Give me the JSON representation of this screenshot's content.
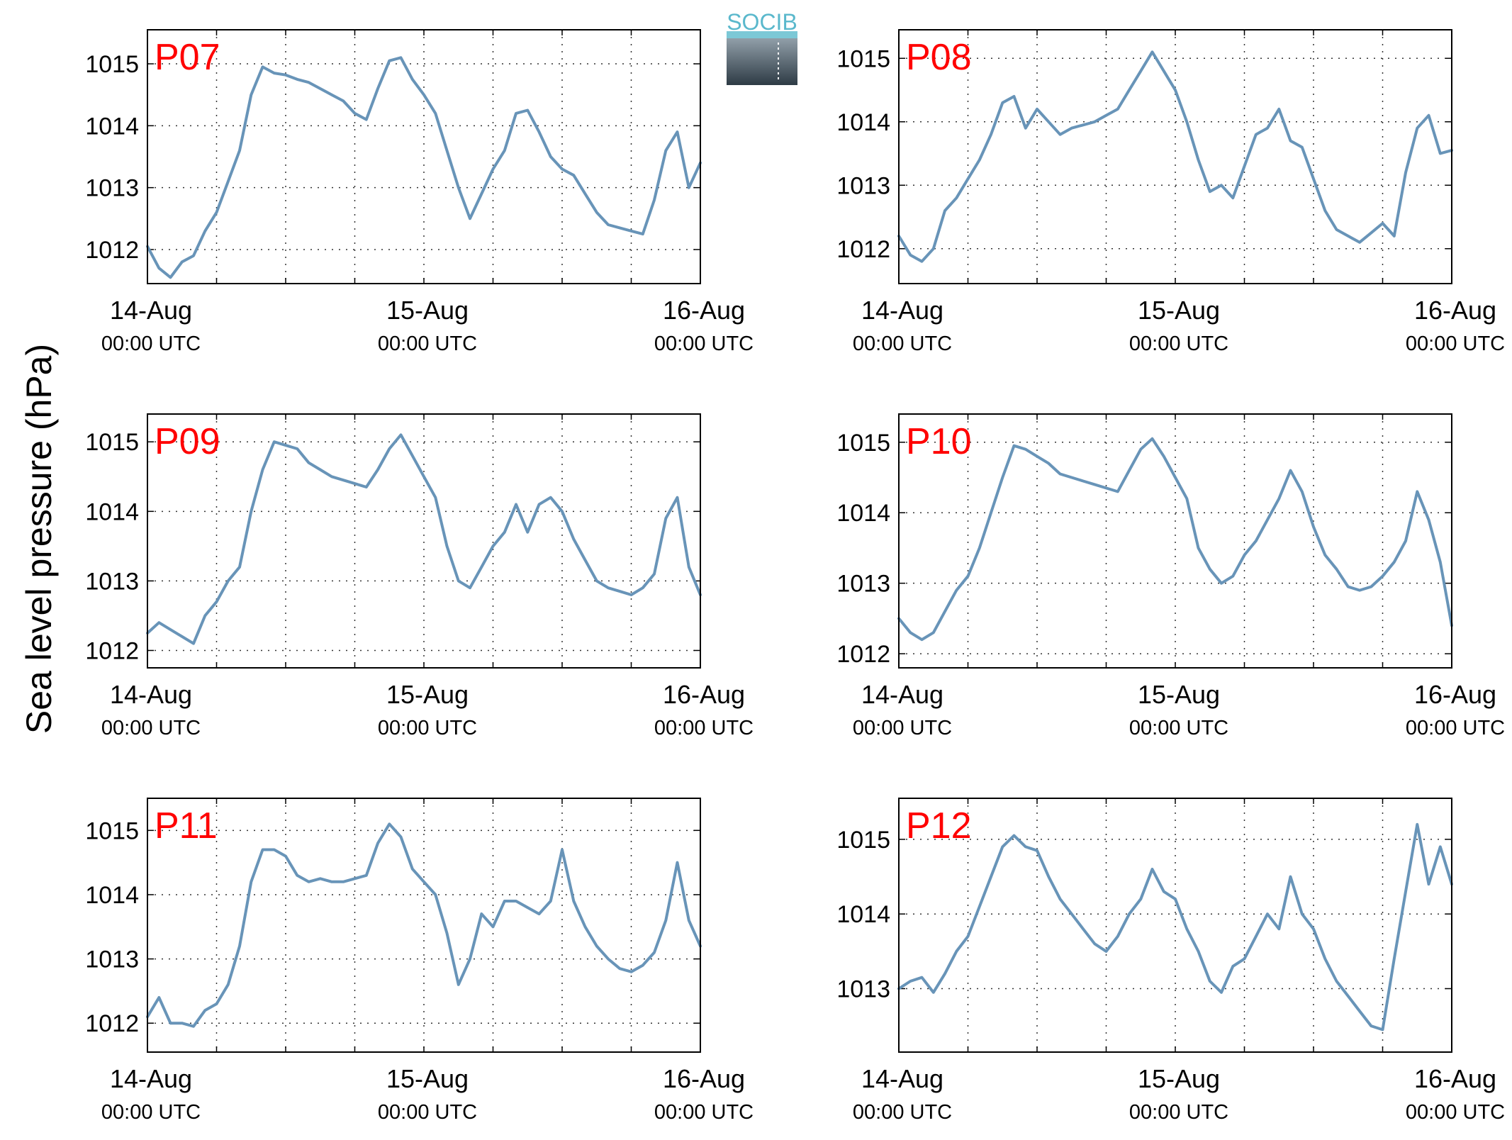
{
  "figure": {
    "ylabel": "Sea level pressure (hPa)",
    "logo_text": "SOCIB"
  },
  "colors": {
    "series": "#6894b8",
    "panel_label": "#ff0000",
    "axis": "#000000",
    "grid": "#333333",
    "logo_top": "#5ab8cc",
    "logo_bottom": "#2e3b45"
  },
  "chart_data": [
    {
      "type": "line",
      "panel_label": "P07",
      "xticks": [
        {
          "date": "14-Aug",
          "time": "00:00 UTC"
        },
        {
          "date": "15-Aug",
          "time": "00:00 UTC"
        },
        {
          "date": "16-Aug",
          "time": "00:00 UTC"
        }
      ],
      "xlim_hours": [
        0,
        48
      ],
      "ylim": [
        1011.45,
        1015.55
      ],
      "yticks": [
        1012,
        1013,
        1014,
        1015
      ],
      "grid": true,
      "series": [
        {
          "x_hours": [
            0,
            1,
            2,
            3,
            4,
            5,
            6,
            7,
            8,
            9,
            10,
            11,
            12,
            13,
            14,
            15,
            16,
            17,
            18,
            19,
            20,
            21,
            22,
            23,
            24,
            25,
            26,
            27,
            28,
            29,
            30,
            31,
            32,
            33,
            34,
            35,
            36,
            37,
            38,
            39,
            40,
            41,
            42,
            43,
            44,
            45,
            46,
            47,
            48
          ],
          "values": [
            1012.05,
            1011.7,
            1011.55,
            1011.8,
            1011.9,
            1012.3,
            1012.6,
            1013.1,
            1013.6,
            1014.5,
            1014.95,
            1014.85,
            1014.82,
            1014.75,
            1014.7,
            1014.6,
            1014.5,
            1014.4,
            1014.2,
            1014.1,
            1014.6,
            1015.05,
            1015.1,
            1014.75,
            1014.5,
            1014.2,
            1013.6,
            1013.0,
            1012.5,
            1012.9,
            1013.3,
            1013.6,
            1014.2,
            1014.25,
            1013.9,
            1013.5,
            1013.3,
            1013.2,
            1012.9,
            1012.6,
            1012.4,
            1012.35,
            1012.3,
            1012.25,
            1012.8,
            1013.6,
            1013.9,
            1013.0,
            1013.4
          ]
        }
      ]
    },
    {
      "type": "line",
      "panel_label": "P08",
      "xticks": [
        {
          "date": "14-Aug",
          "time": "00:00 UTC"
        },
        {
          "date": "15-Aug",
          "time": "00:00 UTC"
        },
        {
          "date": "16-Aug",
          "time": "00:00 UTC"
        }
      ],
      "xlim_hours": [
        0,
        48
      ],
      "ylim": [
        1011.45,
        1015.45
      ],
      "yticks": [
        1012,
        1013,
        1014,
        1015
      ],
      "grid": true,
      "series": [
        {
          "x_hours": [
            0,
            1,
            2,
            3,
            4,
            5,
            6,
            7,
            8,
            9,
            10,
            11,
            12,
            13,
            14,
            15,
            16,
            17,
            18,
            19,
            20,
            21,
            22,
            23,
            24,
            25,
            26,
            27,
            28,
            29,
            30,
            31,
            32,
            33,
            34,
            35,
            36,
            37,
            38,
            39,
            40,
            41,
            42,
            43,
            44,
            45,
            46,
            47,
            48
          ],
          "values": [
            1012.2,
            1011.9,
            1011.8,
            1012.0,
            1012.6,
            1012.8,
            1013.1,
            1013.4,
            1013.8,
            1014.3,
            1014.4,
            1013.9,
            1014.2,
            1014.0,
            1013.8,
            1013.9,
            1013.95,
            1014.0,
            1014.1,
            1014.2,
            1014.5,
            1014.8,
            1015.1,
            1014.8,
            1014.5,
            1014.0,
            1013.4,
            1012.9,
            1013.0,
            1012.8,
            1013.3,
            1013.8,
            1013.9,
            1014.2,
            1013.7,
            1013.6,
            1013.1,
            1012.6,
            1012.3,
            1012.2,
            1012.1,
            1012.25,
            1012.4,
            1012.2,
            1013.2,
            1013.9,
            1014.1,
            1013.5,
            1013.55
          ]
        }
      ]
    },
    {
      "type": "line",
      "panel_label": "P09",
      "xticks": [
        {
          "date": "14-Aug",
          "time": "00:00 UTC"
        },
        {
          "date": "15-Aug",
          "time": "00:00 UTC"
        },
        {
          "date": "16-Aug",
          "time": "00:00 UTC"
        }
      ],
      "xlim_hours": [
        0,
        48
      ],
      "ylim": [
        1011.75,
        1015.4
      ],
      "yticks": [
        1012,
        1013,
        1014,
        1015
      ],
      "grid": true,
      "series": [
        {
          "x_hours": [
            0,
            1,
            2,
            3,
            4,
            5,
            6,
            7,
            8,
            9,
            10,
            11,
            12,
            13,
            14,
            15,
            16,
            17,
            18,
            19,
            20,
            21,
            22,
            23,
            24,
            25,
            26,
            27,
            28,
            29,
            30,
            31,
            32,
            33,
            34,
            35,
            36,
            37,
            38,
            39,
            40,
            41,
            42,
            43,
            44,
            45,
            46,
            47,
            48
          ],
          "values": [
            1012.25,
            1012.4,
            1012.3,
            1012.2,
            1012.1,
            1012.5,
            1012.7,
            1013.0,
            1013.2,
            1014.0,
            1014.6,
            1015.0,
            1014.95,
            1014.9,
            1014.7,
            1014.6,
            1014.5,
            1014.45,
            1014.4,
            1014.35,
            1014.6,
            1014.9,
            1015.1,
            1014.8,
            1014.5,
            1014.2,
            1013.5,
            1013.0,
            1012.9,
            1013.2,
            1013.5,
            1013.7,
            1014.1,
            1013.7,
            1014.1,
            1014.2,
            1014.0,
            1013.6,
            1013.3,
            1013.0,
            1012.9,
            1012.85,
            1012.8,
            1012.9,
            1013.1,
            1013.9,
            1014.2,
            1013.2,
            1012.8
          ]
        }
      ]
    },
    {
      "type": "line",
      "panel_label": "P10",
      "xticks": [
        {
          "date": "14-Aug",
          "time": "00:00 UTC"
        },
        {
          "date": "15-Aug",
          "time": "00:00 UTC"
        },
        {
          "date": "16-Aug",
          "time": "00:00 UTC"
        }
      ],
      "xlim_hours": [
        0,
        48
      ],
      "ylim": [
        1011.8,
        1015.4
      ],
      "yticks": [
        1012,
        1013,
        1014,
        1015
      ],
      "grid": true,
      "series": [
        {
          "x_hours": [
            0,
            1,
            2,
            3,
            4,
            5,
            6,
            7,
            8,
            9,
            10,
            11,
            12,
            13,
            14,
            15,
            16,
            17,
            18,
            19,
            20,
            21,
            22,
            23,
            24,
            25,
            26,
            27,
            28,
            29,
            30,
            31,
            32,
            33,
            34,
            35,
            36,
            37,
            38,
            39,
            40,
            41,
            42,
            43,
            44,
            45,
            46,
            47,
            48
          ],
          "values": [
            1012.5,
            1012.3,
            1012.2,
            1012.3,
            1012.6,
            1012.9,
            1013.1,
            1013.5,
            1014.0,
            1014.5,
            1014.95,
            1014.9,
            1014.8,
            1014.7,
            1014.55,
            1014.5,
            1014.45,
            1014.4,
            1014.35,
            1014.3,
            1014.6,
            1014.9,
            1015.05,
            1014.8,
            1014.5,
            1014.2,
            1013.5,
            1013.2,
            1013.0,
            1013.1,
            1013.4,
            1013.6,
            1013.9,
            1014.2,
            1014.6,
            1014.3,
            1013.8,
            1013.4,
            1013.2,
            1012.95,
            1012.9,
            1012.95,
            1013.1,
            1013.3,
            1013.6,
            1014.3,
            1013.9,
            1013.3,
            1012.4
          ]
        }
      ]
    },
    {
      "type": "line",
      "panel_label": "P11",
      "xticks": [
        {
          "date": "14-Aug",
          "time": "00:00 UTC"
        },
        {
          "date": "15-Aug",
          "time": "00:00 UTC"
        },
        {
          "date": "16-Aug",
          "time": "00:00 UTC"
        }
      ],
      "xlim_hours": [
        0,
        48
      ],
      "ylim": [
        1011.55,
        1015.5
      ],
      "yticks": [
        1012,
        1013,
        1014,
        1015
      ],
      "grid": true,
      "series": [
        {
          "x_hours": [
            0,
            1,
            2,
            3,
            4,
            5,
            6,
            7,
            8,
            9,
            10,
            11,
            12,
            13,
            14,
            15,
            16,
            17,
            18,
            19,
            20,
            21,
            22,
            23,
            24,
            25,
            26,
            27,
            28,
            29,
            30,
            31,
            32,
            33,
            34,
            35,
            36,
            37,
            38,
            39,
            40,
            41,
            42,
            43,
            44,
            45,
            46,
            47,
            48
          ],
          "values": [
            1012.1,
            1012.4,
            1012.0,
            1012.0,
            1011.95,
            1012.2,
            1012.3,
            1012.6,
            1013.2,
            1014.2,
            1014.7,
            1014.7,
            1014.6,
            1014.3,
            1014.2,
            1014.25,
            1014.2,
            1014.2,
            1014.25,
            1014.3,
            1014.8,
            1015.1,
            1014.9,
            1014.4,
            1014.2,
            1014.0,
            1013.4,
            1012.6,
            1013.0,
            1013.7,
            1013.5,
            1013.9,
            1013.9,
            1013.8,
            1013.7,
            1013.9,
            1014.7,
            1013.9,
            1013.5,
            1013.2,
            1013.0,
            1012.85,
            1012.8,
            1012.9,
            1013.1,
            1013.6,
            1014.5,
            1013.6,
            1013.2
          ]
        }
      ]
    },
    {
      "type": "line",
      "panel_label": "P12",
      "xticks": [
        {
          "date": "14-Aug",
          "time": "00:00 UTC"
        },
        {
          "date": "15-Aug",
          "time": "00:00 UTC"
        },
        {
          "date": "16-Aug",
          "time": "00:00 UTC"
        }
      ],
      "xlim_hours": [
        0,
        48
      ],
      "ylim": [
        1012.15,
        1015.55
      ],
      "yticks": [
        1013,
        1014,
        1015
      ],
      "grid": true,
      "series": [
        {
          "x_hours": [
            0,
            1,
            2,
            3,
            4,
            5,
            6,
            7,
            8,
            9,
            10,
            11,
            12,
            13,
            14,
            15,
            16,
            17,
            18,
            19,
            20,
            21,
            22,
            23,
            24,
            25,
            26,
            27,
            28,
            29,
            30,
            31,
            32,
            33,
            34,
            35,
            36,
            37,
            38,
            39,
            40,
            41,
            42,
            43,
            44,
            45,
            46,
            47,
            48
          ],
          "values": [
            1013.0,
            1013.1,
            1013.15,
            1012.95,
            1013.2,
            1013.5,
            1013.7,
            1014.1,
            1014.5,
            1014.9,
            1015.05,
            1014.9,
            1014.85,
            1014.5,
            1014.2,
            1014.0,
            1013.8,
            1013.6,
            1013.5,
            1013.7,
            1014.0,
            1014.2,
            1014.6,
            1014.3,
            1014.2,
            1013.8,
            1013.5,
            1013.1,
            1012.95,
            1013.3,
            1013.4,
            1013.7,
            1014.0,
            1013.8,
            1014.5,
            1014.0,
            1013.8,
            1013.4,
            1013.1,
            1012.9,
            1012.7,
            1012.5,
            1012.45,
            1013.4,
            1014.3,
            1015.2,
            1014.4,
            1014.9,
            1014.4
          ]
        }
      ]
    }
  ]
}
